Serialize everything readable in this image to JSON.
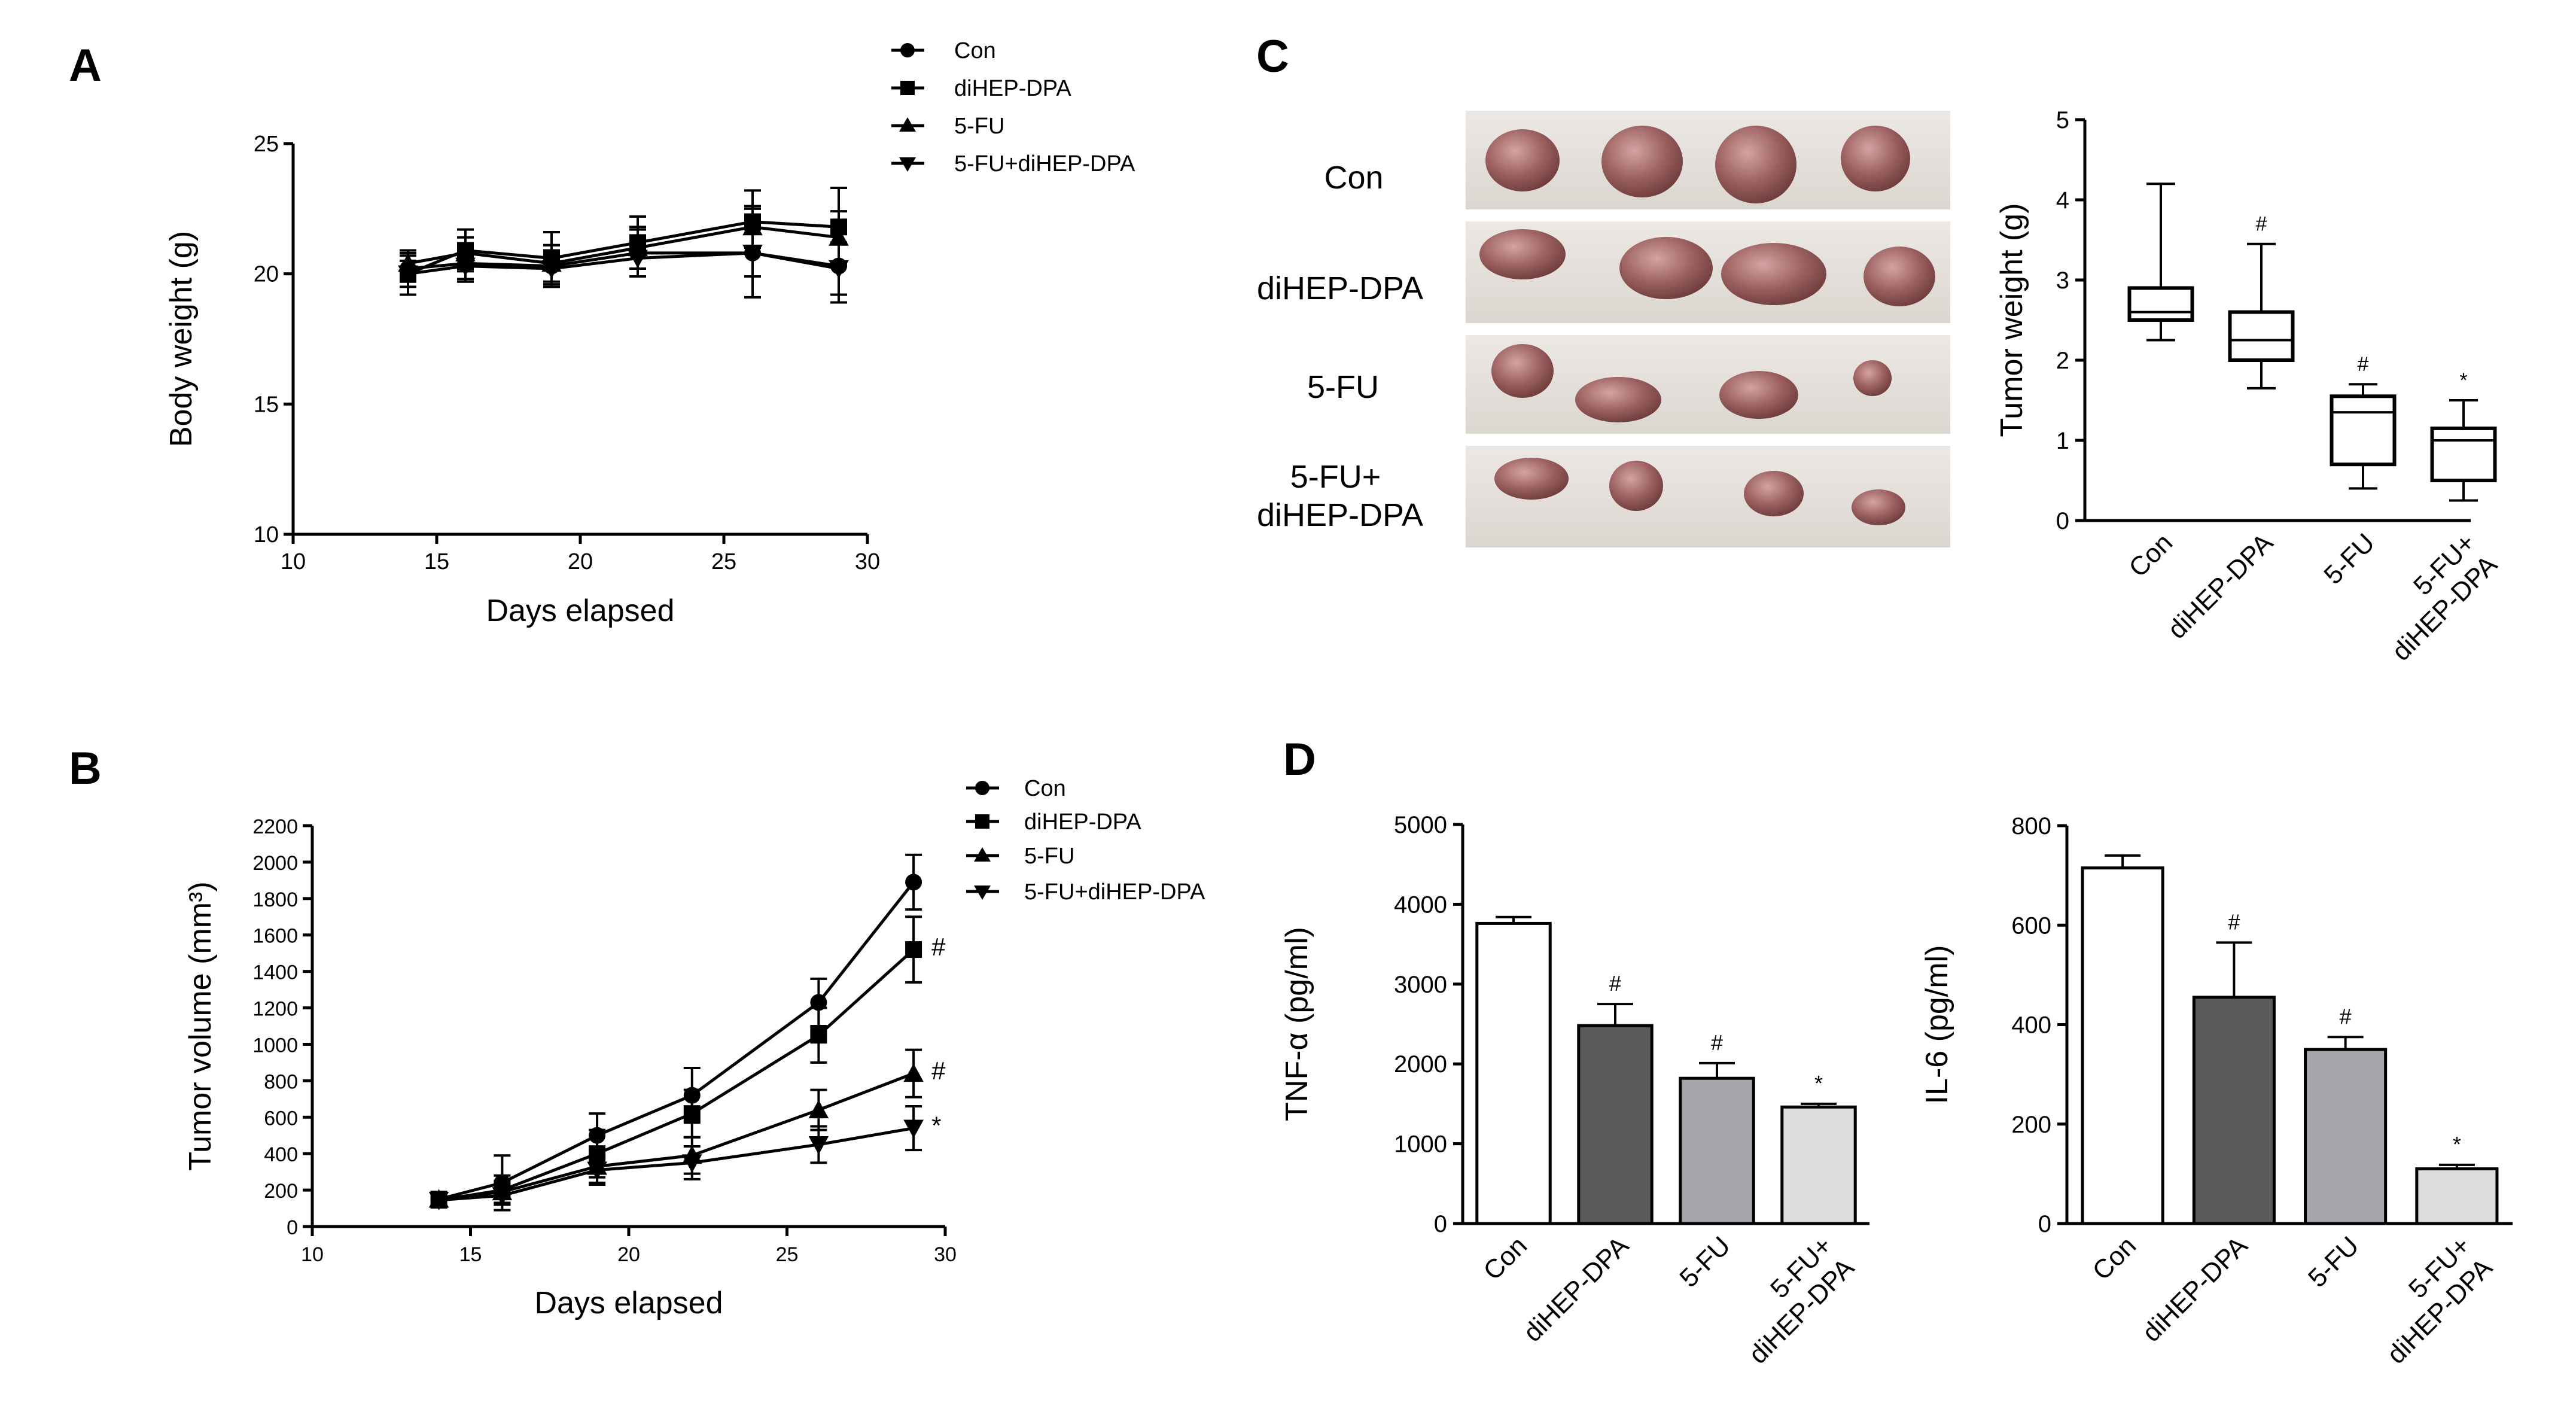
{
  "panel_labels": {
    "a": "A",
    "b": "B",
    "c": "C",
    "d": "D"
  },
  "groups": [
    "Con",
    "diHEP-DPA",
    "5-FU",
    "5-FU+diHEP-DPA"
  ],
  "photo_labels": [
    "Con",
    "diHEP-DPA",
    "5-FU",
    "5-FU+\ndiHEP-DPA"
  ],
  "chart_data": [
    {
      "id": "A",
      "type": "line",
      "title": "",
      "xlabel": "Days elapsed",
      "ylabel": "Body weight (g)",
      "xlim": [
        10,
        30
      ],
      "ylim": [
        10,
        25
      ],
      "xticks": [
        10,
        15,
        20,
        25,
        30
      ],
      "yticks": [
        10,
        15,
        20,
        25
      ],
      "x": [
        14,
        16,
        19,
        22,
        26,
        29
      ],
      "legend_position": "top-right",
      "series": [
        {
          "name": "Con",
          "marker": "circle",
          "values": [
            20.2,
            20.4,
            20.3,
            20.8,
            20.8,
            20.3
          ],
          "errors": [
            0.5,
            0.6,
            0.8,
            0.9,
            1.7,
            1.4
          ]
        },
        {
          "name": "diHEP-DPA",
          "marker": "square",
          "values": [
            20.0,
            20.9,
            20.6,
            21.2,
            22.0,
            21.8
          ],
          "errors": [
            0.8,
            0.8,
            1.0,
            1.0,
            1.2,
            1.5
          ]
        },
        {
          "name": "5-FU",
          "marker": "triangle",
          "values": [
            20.4,
            20.8,
            20.4,
            21.0,
            21.8,
            21.4
          ],
          "errors": [
            0.5,
            0.6,
            0.7,
            0.8,
            0.8,
            1.0
          ]
        },
        {
          "name": "5-FU+diHEP-DPA",
          "marker": "triangle-down",
          "values": [
            20.0,
            20.3,
            20.2,
            20.6,
            20.8,
            20.2
          ],
          "errors": [
            0.5,
            0.6,
            0.7,
            0.7,
            0.9,
            1.0
          ]
        }
      ]
    },
    {
      "id": "B",
      "type": "line",
      "title": "",
      "xlabel": "Days elapsed",
      "ylabel": "Tumor volume (mm³)",
      "xlim": [
        10,
        30
      ],
      "ylim": [
        0,
        2200
      ],
      "xticks": [
        10,
        15,
        20,
        25,
        30
      ],
      "yticks": [
        0,
        200,
        400,
        600,
        800,
        1000,
        1200,
        1400,
        1600,
        1800,
        2000,
        2200
      ],
      "x": [
        14,
        16,
        19,
        22,
        26,
        29
      ],
      "legend_position": "top-right",
      "series": [
        {
          "name": "Con",
          "marker": "circle",
          "values": [
            150,
            240,
            500,
            720,
            1230,
            1890
          ],
          "errors": [
            40,
            150,
            120,
            150,
            130,
            150
          ],
          "annotation": ""
        },
        {
          "name": "diHEP-DPA",
          "marker": "square",
          "values": [
            145,
            200,
            400,
            620,
            1050,
            1520
          ],
          "errors": [
            40,
            80,
            130,
            130,
            150,
            180
          ],
          "annotation": "#"
        },
        {
          "name": "5-FU",
          "marker": "triangle",
          "values": [
            150,
            190,
            330,
            390,
            640,
            840
          ],
          "errors": [
            40,
            60,
            90,
            100,
            110,
            130
          ],
          "annotation": "#"
        },
        {
          "name": "5-FU+diHEP-DPA",
          "marker": "triangle-down",
          "values": [
            145,
            170,
            310,
            350,
            450,
            540
          ],
          "errors": [
            40,
            50,
            80,
            90,
            100,
            120
          ],
          "annotation": "*"
        }
      ]
    },
    {
      "id": "C",
      "type": "box",
      "title": "",
      "xlabel": "",
      "ylabel": "Tumor weight (g)",
      "ylim": [
        0,
        5
      ],
      "yticks": [
        0,
        1,
        2,
        3,
        4,
        5
      ],
      "categories": [
        "Con",
        "diHEP-DPA",
        "5-FU",
        "5-FU+\ndiHEP-DPA"
      ],
      "boxes": [
        {
          "min": 2.25,
          "q1": 2.5,
          "median": 2.6,
          "q3": 2.9,
          "max": 4.2,
          "annotation": ""
        },
        {
          "min": 1.65,
          "q1": 2.0,
          "median": 2.25,
          "q3": 2.6,
          "max": 3.45,
          "annotation": "#"
        },
        {
          "min": 0.4,
          "q1": 0.7,
          "median": 1.35,
          "q3": 1.55,
          "max": 1.7,
          "annotation": "#"
        },
        {
          "min": 0.25,
          "q1": 0.5,
          "median": 1.0,
          "q3": 1.15,
          "max": 1.5,
          "annotation": "*"
        }
      ]
    },
    {
      "id": "D-TNF",
      "type": "bar",
      "title": "",
      "xlabel": "",
      "ylabel": "TNF-α (pg/ml)",
      "ylim": [
        0,
        5000
      ],
      "yticks": [
        0,
        1000,
        2000,
        3000,
        4000,
        5000
      ],
      "categories": [
        "Con",
        "diHEP-DPA",
        "5-FU",
        "5-FU+\ndiHEP-DPA"
      ],
      "values": [
        3760,
        2480,
        1820,
        1460
      ],
      "errors": [
        80,
        270,
        190,
        40
      ],
      "fills": [
        "#ffffff",
        "#5a5a5a",
        "#a6a6ad",
        "#dddddd"
      ],
      "annotations": [
        "",
        "#",
        "#",
        "*"
      ]
    },
    {
      "id": "D-IL6",
      "type": "bar",
      "title": "",
      "xlabel": "",
      "ylabel": "IL-6 (pg/ml)",
      "ylim": [
        0,
        800
      ],
      "yticks": [
        0,
        200,
        400,
        600,
        800
      ],
      "categories": [
        "Con",
        "diHEP-DPA",
        "5-FU",
        "5-FU+\ndiHEP-DPA"
      ],
      "values": [
        715,
        455,
        350,
        110
      ],
      "errors": [
        25,
        110,
        25,
        8
      ],
      "fills": [
        "#ffffff",
        "#5a5a5a",
        "#a6a6ad",
        "#dddddd"
      ],
      "annotations": [
        "",
        "#",
        "#",
        "*"
      ]
    }
  ]
}
